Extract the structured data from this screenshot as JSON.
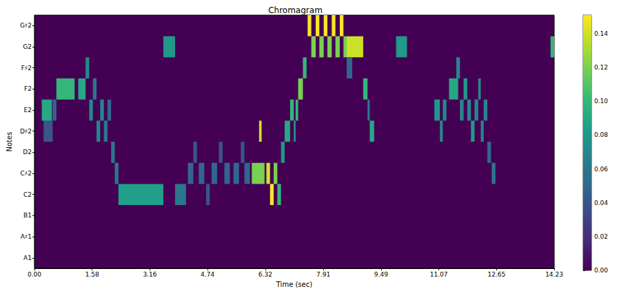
{
  "chart_data": {
    "type": "heatmap",
    "title": "Chromagram",
    "x_label": "Time (sec)",
    "y_label": "Notes",
    "categories": [
      "A1",
      "A♯1",
      "B1",
      "C2",
      "C♯2",
      "D2",
      "D♯2",
      "E2",
      "F2",
      "F♯2",
      "G2",
      "G♯2"
    ],
    "xlim": [
      0,
      14.23
    ],
    "xticks": [
      {
        "value": 0,
        "label": "0.00"
      },
      {
        "value": 1.58,
        "label": "1.58"
      },
      {
        "value": 3.16,
        "label": "3.16"
      },
      {
        "value": 4.74,
        "label": "4.74"
      },
      {
        "value": 6.32,
        "label": "6.32"
      },
      {
        "value": 7.91,
        "label": "7.91"
      },
      {
        "value": 9.49,
        "label": "9.49"
      },
      {
        "value": 11.07,
        "label": "11.07"
      },
      {
        "value": 12.65,
        "label": "12.65"
      },
      {
        "value": 14.23,
        "label": "14.23"
      }
    ],
    "grid": false,
    "cells": [
      {
        "note": "D♯2",
        "start": 0.25,
        "end": 0.5,
        "value": 0.04
      },
      {
        "note": "E2",
        "start": 0.2,
        "end": 0.48,
        "value": 0.09
      },
      {
        "note": "E2",
        "start": 0.5,
        "end": 0.6,
        "value": 0.05
      },
      {
        "note": "F2",
        "start": 0.6,
        "end": 1.1,
        "value": 0.1
      },
      {
        "note": "F2",
        "start": 1.2,
        "end": 1.4,
        "value": 0.09
      },
      {
        "note": "F♯2",
        "start": 1.4,
        "end": 1.5,
        "value": 0.07
      },
      {
        "note": "E2",
        "start": 1.5,
        "end": 1.6,
        "value": 0.07
      },
      {
        "note": "F2",
        "start": 1.6,
        "end": 1.7,
        "value": 0.06
      },
      {
        "note": "D♯2",
        "start": 1.7,
        "end": 1.8,
        "value": 0.07
      },
      {
        "note": "E2",
        "start": 1.8,
        "end": 1.9,
        "value": 0.07
      },
      {
        "note": "D♯2",
        "start": 1.9,
        "end": 2.0,
        "value": 0.06
      },
      {
        "note": "E2",
        "start": 2.0,
        "end": 2.1,
        "value": 0.05
      },
      {
        "note": "D2",
        "start": 2.1,
        "end": 2.2,
        "value": 0.06
      },
      {
        "note": "C♯2",
        "start": 2.2,
        "end": 2.3,
        "value": 0.06
      },
      {
        "note": "C2",
        "start": 2.3,
        "end": 3.53,
        "value": 0.085
      },
      {
        "note": "G2",
        "start": 3.53,
        "end": 3.85,
        "value": 0.08
      },
      {
        "note": "C2",
        "start": 3.85,
        "end": 4.15,
        "value": 0.06
      },
      {
        "note": "C♯2",
        "start": 4.2,
        "end": 4.35,
        "value": 0.05
      },
      {
        "note": "D2",
        "start": 4.35,
        "end": 4.45,
        "value": 0.04
      },
      {
        "note": "C♯2",
        "start": 4.5,
        "end": 4.65,
        "value": 0.05
      },
      {
        "note": "C2",
        "start": 4.7,
        "end": 4.8,
        "value": 0.04
      },
      {
        "note": "C♯2",
        "start": 4.85,
        "end": 5.0,
        "value": 0.05
      },
      {
        "note": "D2",
        "start": 5.05,
        "end": 5.15,
        "value": 0.04
      },
      {
        "note": "C♯2",
        "start": 5.2,
        "end": 5.35,
        "value": 0.05
      },
      {
        "note": "C♯2",
        "start": 5.45,
        "end": 5.6,
        "value": 0.05
      },
      {
        "note": "D2",
        "start": 5.65,
        "end": 5.75,
        "value": 0.04
      },
      {
        "note": "C♯2",
        "start": 5.75,
        "end": 5.9,
        "value": 0.05
      },
      {
        "note": "C♯2",
        "start": 5.95,
        "end": 6.3,
        "value": 0.12
      },
      {
        "note": "D♯2",
        "start": 6.15,
        "end": 6.22,
        "value": 0.14
      },
      {
        "note": "C♯2",
        "start": 6.35,
        "end": 6.45,
        "value": 0.14
      },
      {
        "note": "C2",
        "start": 6.45,
        "end": 6.55,
        "value": 0.15
      },
      {
        "note": "C♯2",
        "start": 6.55,
        "end": 6.65,
        "value": 0.12
      },
      {
        "note": "C2",
        "start": 6.65,
        "end": 6.75,
        "value": 0.1
      },
      {
        "note": "D2",
        "start": 6.75,
        "end": 6.85,
        "value": 0.08
      },
      {
        "note": "D♯2",
        "start": 6.85,
        "end": 7.0,
        "value": 0.09
      },
      {
        "note": "E2",
        "start": 7.0,
        "end": 7.1,
        "value": 0.1
      },
      {
        "note": "D♯2",
        "start": 7.1,
        "end": 7.15,
        "value": 0.08
      },
      {
        "note": "E2",
        "start": 7.15,
        "end": 7.22,
        "value": 0.1
      },
      {
        "note": "F2",
        "start": 7.22,
        "end": 7.35,
        "value": 0.12
      },
      {
        "note": "F♯2",
        "start": 7.35,
        "end": 7.45,
        "value": 0.1
      },
      {
        "note": "G♯2",
        "start": 7.48,
        "end": 7.58,
        "value": 0.15
      },
      {
        "note": "G2",
        "start": 7.58,
        "end": 7.7,
        "value": 0.12
      },
      {
        "note": "G♯2",
        "start": 7.7,
        "end": 7.8,
        "value": 0.15
      },
      {
        "note": "G2",
        "start": 7.8,
        "end": 7.92,
        "value": 0.12
      },
      {
        "note": "G♯2",
        "start": 7.92,
        "end": 8.02,
        "value": 0.15
      },
      {
        "note": "G2",
        "start": 8.02,
        "end": 8.14,
        "value": 0.12
      },
      {
        "note": "G♯2",
        "start": 8.14,
        "end": 8.24,
        "value": 0.15
      },
      {
        "note": "G2",
        "start": 8.24,
        "end": 8.36,
        "value": 0.12
      },
      {
        "note": "G♯2",
        "start": 8.36,
        "end": 8.46,
        "value": 0.15
      },
      {
        "note": "G2",
        "start": 8.46,
        "end": 8.55,
        "value": 0.12
      },
      {
        "note": "G2",
        "start": 8.55,
        "end": 9.0,
        "value": 0.14
      },
      {
        "note": "F♯2",
        "start": 8.55,
        "end": 8.7,
        "value": 0.05
      },
      {
        "note": "F2",
        "start": 9.0,
        "end": 9.12,
        "value": 0.1
      },
      {
        "note": "E2",
        "start": 9.12,
        "end": 9.18,
        "value": 0.06
      },
      {
        "note": "D♯2",
        "start": 9.18,
        "end": 9.3,
        "value": 0.09
      },
      {
        "note": "G2",
        "start": 9.9,
        "end": 10.2,
        "value": 0.08
      },
      {
        "note": "E2",
        "start": 10.95,
        "end": 11.1,
        "value": 0.08
      },
      {
        "note": "D♯2",
        "start": 11.1,
        "end": 11.18,
        "value": 0.07
      },
      {
        "note": "E2",
        "start": 11.18,
        "end": 11.28,
        "value": 0.07
      },
      {
        "note": "F2",
        "start": 11.35,
        "end": 11.6,
        "value": 0.09
      },
      {
        "note": "F♯2",
        "start": 11.55,
        "end": 11.65,
        "value": 0.07
      },
      {
        "note": "E2",
        "start": 11.65,
        "end": 11.75,
        "value": 0.07
      },
      {
        "note": "F2",
        "start": 11.75,
        "end": 11.85,
        "value": 0.08
      },
      {
        "note": "E2",
        "start": 11.85,
        "end": 11.95,
        "value": 0.07
      },
      {
        "note": "D♯2",
        "start": 11.95,
        "end": 12.05,
        "value": 0.08
      },
      {
        "note": "E2",
        "start": 12.05,
        "end": 12.15,
        "value": 0.07
      },
      {
        "note": "F2",
        "start": 12.15,
        "end": 12.22,
        "value": 0.07
      },
      {
        "note": "D♯2",
        "start": 12.22,
        "end": 12.3,
        "value": 0.07
      },
      {
        "note": "E2",
        "start": 12.3,
        "end": 12.4,
        "value": 0.07
      },
      {
        "note": "D2",
        "start": 12.4,
        "end": 12.5,
        "value": 0.05
      },
      {
        "note": "C♯2",
        "start": 12.52,
        "end": 12.62,
        "value": 0.06
      },
      {
        "note": "G2",
        "start": 14.13,
        "end": 14.23,
        "value": 0.1
      }
    ],
    "colorbar": {
      "range": [
        0,
        0.151
      ],
      "ticks": [
        {
          "value": 0,
          "label": "0.00"
        },
        {
          "value": 0.02,
          "label": "0.02"
        },
        {
          "value": 0.04,
          "label": "0.04"
        },
        {
          "value": 0.06,
          "label": "0.06"
        },
        {
          "value": 0.08,
          "label": "0.08"
        },
        {
          "value": 0.1,
          "label": "0.10"
        },
        {
          "value": 0.12,
          "label": "0.12"
        },
        {
          "value": 0.14,
          "label": "0.14"
        }
      ]
    }
  }
}
